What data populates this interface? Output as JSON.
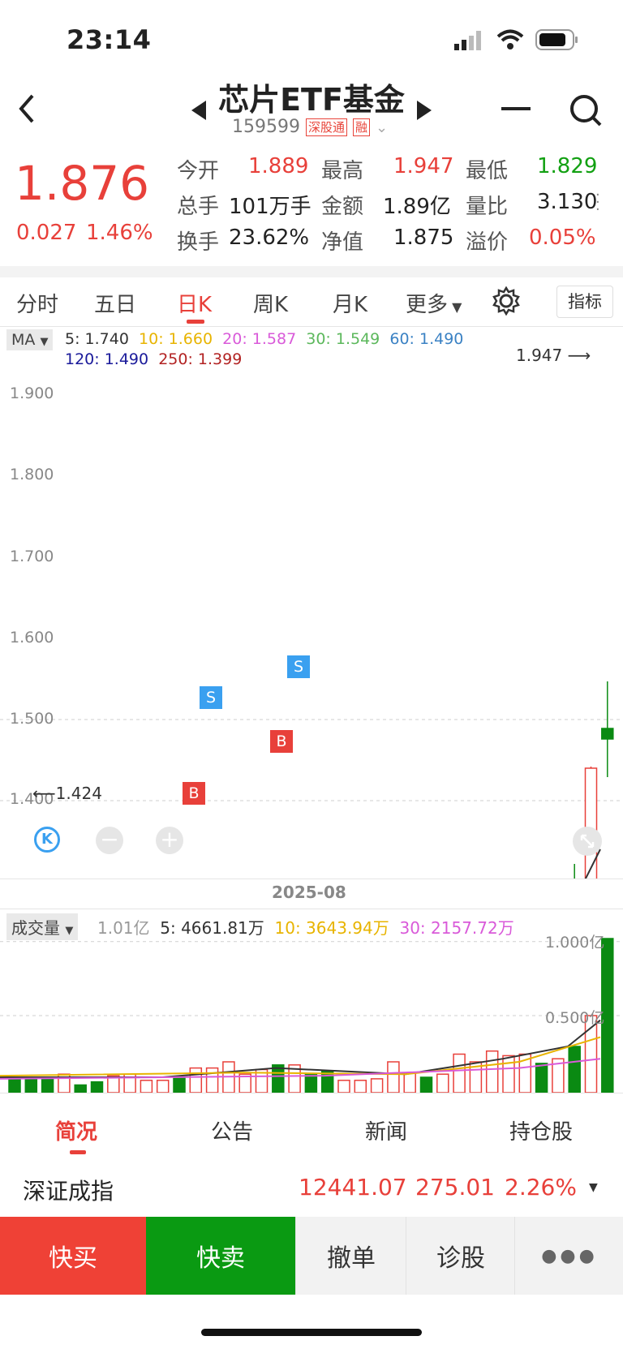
{
  "status_bar": {
    "time": "23:14"
  },
  "header": {
    "title": "芯片ETF基金",
    "code": "159599",
    "tag_shenzhen": "深股通",
    "tag_margin": "融"
  },
  "quote": {
    "price": "1.876",
    "change": "0.027",
    "change_pct": "1.46%",
    "fields": [
      {
        "label": "今开",
        "value": "1.889",
        "color": "red"
      },
      {
        "label": "最高",
        "value": "1.947",
        "color": "red"
      },
      {
        "label": "最低",
        "value": "1.829",
        "color": "green"
      },
      {
        "label": "总手",
        "value": "101万手",
        "color": "dark"
      },
      {
        "label": "金额",
        "value": "1.89亿",
        "color": "dark"
      },
      {
        "label": "量比",
        "value": "3.130",
        "color": "dark"
      },
      {
        "label": "换手",
        "value": "23.62%",
        "color": "dark"
      },
      {
        "label": "净值",
        "value": "1.875",
        "color": "dark"
      },
      {
        "label": "溢价",
        "value": "0.05%",
        "color": "red"
      }
    ]
  },
  "chart_tabs": [
    "分时",
    "五日",
    "日K",
    "周K",
    "月K",
    "更多"
  ],
  "active_tab": "日K",
  "indicator_button": "指标",
  "ma": {
    "selector": "MA",
    "ma5": "5: 1.740",
    "ma10": "10: 1.660",
    "ma20": "20: 1.587",
    "ma30": "30: 1.549",
    "ma60": "60: 1.490",
    "ma120": "120: 1.490",
    "ma250": "250: 1.399"
  },
  "price_axis": [
    "1.900",
    "1.800",
    "1.700",
    "1.600",
    "1.500",
    "1.400"
  ],
  "high_marker": "1.947",
  "low_marker": "1.424",
  "signals": {
    "b": "B",
    "s": "S"
  },
  "date_label": "2025-08",
  "volume": {
    "selector": "成交量",
    "current": "1.01亿",
    "ma5": "5: 4661.81万",
    "ma10": "10: 3643.94万",
    "ma30": "30: 2157.72万",
    "axis_top": "1.000亿",
    "axis_mid": "0.500亿"
  },
  "bottom_tabs": [
    "简况",
    "公告",
    "新闻",
    "持仓股"
  ],
  "index_bar": {
    "name": "深证成指",
    "value": "12441.07",
    "change": "275.01",
    "pct": "2.26%"
  },
  "actions": {
    "buy": "快买",
    "sell": "快卖",
    "cancel": "撤单",
    "diagnose": "诊股"
  },
  "colors": {
    "up": "#e8403a",
    "down": "#0a8a12",
    "ma5": "#333333",
    "ma10": "#e8b400",
    "ma20": "#d95ad9",
    "ma30": "#5cb85c",
    "ma60": "#3b82c4",
    "ma120": "#1a1a9a",
    "ma250": "#b22222"
  }
}
